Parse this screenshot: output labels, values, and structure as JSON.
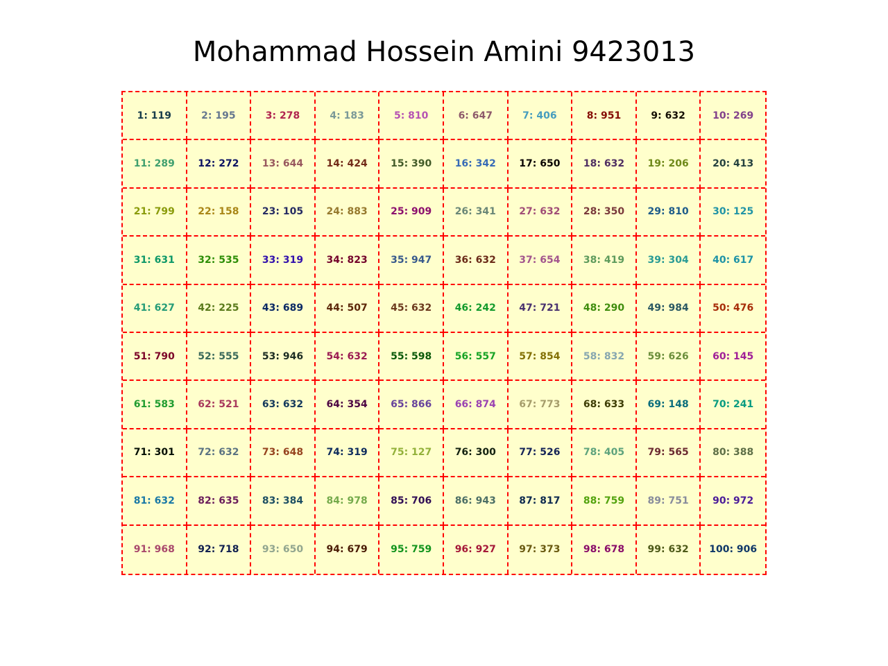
{
  "title": "Mohammad Hossein Amini 9423013",
  "chart_data": {
    "type": "table",
    "rows": 10,
    "columns": 10,
    "cell_background": "#ffffcc",
    "border_color": "#ff0000",
    "border_style": "dashed",
    "cells": [
      {
        "label": "1: 119",
        "color": "#163b4a"
      },
      {
        "label": "2: 195",
        "color": "#65778f"
      },
      {
        "label": "3: 278",
        "color": "#b0244f"
      },
      {
        "label": "4: 183",
        "color": "#7b9998"
      },
      {
        "label": "5: 810",
        "color": "#b552b3"
      },
      {
        "label": "6: 647",
        "color": "#8e5a6b"
      },
      {
        "label": "7: 406",
        "color": "#469dbe"
      },
      {
        "label": "8: 951",
        "color": "#850d06"
      },
      {
        "label": "9: 632",
        "color": "#140e04"
      },
      {
        "label": "10: 269",
        "color": "#82418b"
      },
      {
        "label": "11: 289",
        "color": "#3f9f6e"
      },
      {
        "label": "12: 272",
        "color": "#0b1262"
      },
      {
        "label": "13: 644",
        "color": "#98585e"
      },
      {
        "label": "14: 424",
        "color": "#722b19"
      },
      {
        "label": "15: 390",
        "color": "#435b28"
      },
      {
        "label": "16: 342",
        "color": "#376bb6"
      },
      {
        "label": "17: 650",
        "color": "#0b0603"
      },
      {
        "label": "18: 632",
        "color": "#4f2e62"
      },
      {
        "label": "19: 206",
        "color": "#6f891a"
      },
      {
        "label": "20: 413",
        "color": "#24413f"
      },
      {
        "label": "21: 799",
        "color": "#8a9b0b"
      },
      {
        "label": "22: 158",
        "color": "#a98617"
      },
      {
        "label": "23: 105",
        "color": "#262c63"
      },
      {
        "label": "24: 883",
        "color": "#96792e"
      },
      {
        "label": "25: 909",
        "color": "#8c0f6d"
      },
      {
        "label": "26: 341",
        "color": "#6a8777"
      },
      {
        "label": "27: 632",
        "color": "#a04d77"
      },
      {
        "label": "28: 350",
        "color": "#7a3a3c"
      },
      {
        "label": "29: 810",
        "color": "#1e5c8a"
      },
      {
        "label": "30: 125",
        "color": "#2194a6"
      },
      {
        "label": "31: 631",
        "color": "#0e9868"
      },
      {
        "label": "32: 535",
        "color": "#2d8e07"
      },
      {
        "label": "33: 319",
        "color": "#3211ac"
      },
      {
        "label": "34: 823",
        "color": "#74032b"
      },
      {
        "label": "35: 947",
        "color": "#385a8c"
      },
      {
        "label": "36: 632",
        "color": "#6b2b18"
      },
      {
        "label": "37: 654",
        "color": "#a3568d"
      },
      {
        "label": "38: 419",
        "color": "#5e9b5c"
      },
      {
        "label": "39: 304",
        "color": "#2a9b95"
      },
      {
        "label": "40: 617",
        "color": "#1e93a6"
      },
      {
        "label": "41: 627",
        "color": "#259c77"
      },
      {
        "label": "42: 225",
        "color": "#5a7a1b"
      },
      {
        "label": "43: 689",
        "color": "#0a2964"
      },
      {
        "label": "44: 507",
        "color": "#5c2708"
      },
      {
        "label": "45: 632",
        "color": "#6c3a1e"
      },
      {
        "label": "46: 242",
        "color": "#139b2c"
      },
      {
        "label": "47: 721",
        "color": "#48316f"
      },
      {
        "label": "48: 290",
        "color": "#3f8d0d"
      },
      {
        "label": "49: 984",
        "color": "#2a5863"
      },
      {
        "label": "50: 476",
        "color": "#a72d09"
      },
      {
        "label": "51: 790",
        "color": "#7c0528"
      },
      {
        "label": "52: 555",
        "color": "#3b6a5b"
      },
      {
        "label": "53: 946",
        "color": "#1c2c22"
      },
      {
        "label": "54: 632",
        "color": "#9b1c52"
      },
      {
        "label": "55: 598",
        "color": "#0b5a0a"
      },
      {
        "label": "56: 557",
        "color": "#17a326"
      },
      {
        "label": "57: 854",
        "color": "#837005"
      },
      {
        "label": "58: 832",
        "color": "#87a7b0"
      },
      {
        "label": "59: 626",
        "color": "#6c8f3c"
      },
      {
        "label": "60: 145",
        "color": "#a01f98"
      },
      {
        "label": "61: 583",
        "color": "#209c30"
      },
      {
        "label": "62: 521",
        "color": "#a8385c"
      },
      {
        "label": "63: 632",
        "color": "#14395c"
      },
      {
        "label": "64: 354",
        "color": "#4c0543"
      },
      {
        "label": "65: 866",
        "color": "#68439c"
      },
      {
        "label": "66: 874",
        "color": "#9a43b2"
      },
      {
        "label": "67: 773",
        "color": "#a59c6b"
      },
      {
        "label": "68: 633",
        "color": "#3d3c04"
      },
      {
        "label": "69: 148",
        "color": "#0a6d7c"
      },
      {
        "label": "70: 241",
        "color": "#089b81"
      },
      {
        "label": "71: 301",
        "color": "#050f05"
      },
      {
        "label": "72: 632",
        "color": "#5b7382"
      },
      {
        "label": "73: 648",
        "color": "#96431f"
      },
      {
        "label": "74: 319",
        "color": "#0f2d5e"
      },
      {
        "label": "75: 127",
        "color": "#93b13a"
      },
      {
        "label": "76: 300",
        "color": "#142211"
      },
      {
        "label": "77: 526",
        "color": "#152458"
      },
      {
        "label": "78: 405",
        "color": "#5ea37d"
      },
      {
        "label": "79: 565",
        "color": "#6b2b32"
      },
      {
        "label": "80: 388",
        "color": "#5e6f47"
      },
      {
        "label": "81: 632",
        "color": "#1a79a6"
      },
      {
        "label": "82: 635",
        "color": "#6b1e5c"
      },
      {
        "label": "83: 384",
        "color": "#1d4f63"
      },
      {
        "label": "84: 978",
        "color": "#75aa4b"
      },
      {
        "label": "85: 706",
        "color": "#300e55"
      },
      {
        "label": "86: 943",
        "color": "#4c6f66"
      },
      {
        "label": "87: 817",
        "color": "#0e2a4f"
      },
      {
        "label": "88: 759",
        "color": "#53a30e"
      },
      {
        "label": "89: 751",
        "color": "#888c9c"
      },
      {
        "label": "90: 972",
        "color": "#4b1c99"
      },
      {
        "label": "91: 968",
        "color": "#a9496c"
      },
      {
        "label": "92: 718",
        "color": "#112050"
      },
      {
        "label": "93: 650",
        "color": "#92a68f"
      },
      {
        "label": "94: 679",
        "color": "#4a1c05"
      },
      {
        "label": "95: 759",
        "color": "#13941d"
      },
      {
        "label": "96: 927",
        "color": "#a51838"
      },
      {
        "label": "97: 373",
        "color": "#6a5a11"
      },
      {
        "label": "98: 678",
        "color": "#8a0d69"
      },
      {
        "label": "99: 632",
        "color": "#4e5a19"
      },
      {
        "label": "100: 906",
        "color": "#103868"
      }
    ]
  }
}
